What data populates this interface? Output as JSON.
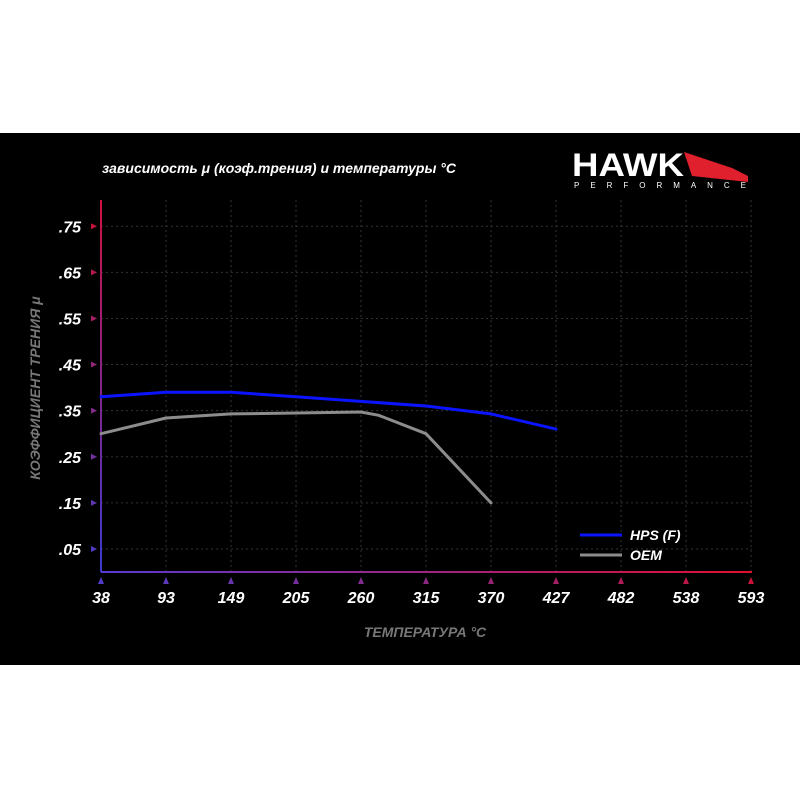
{
  "chart_data": {
    "type": "line",
    "title": "зависимость μ (коэф.трения) и температуры °C",
    "xlabel": "ТЕМПЕРАТУРА °C",
    "ylabel": "КОЭФФИЦИЕНТ ТРЕНИЯ μ",
    "x_ticks": [
      "38",
      "93",
      "149",
      "205",
      "260",
      "315",
      "370",
      "427",
      "482",
      "538",
      "593"
    ],
    "y_ticks": [
      ".05",
      ".15",
      ".25",
      ".35",
      ".45",
      ".55",
      ".65",
      ".75"
    ],
    "xlim": [
      38,
      593
    ],
    "ylim": [
      0,
      0.8
    ],
    "grid": true,
    "legend_position": "bottom-right",
    "series": [
      {
        "name": "HPS (F)",
        "color": "#0a14ff",
        "points": [
          [
            38,
            0.38
          ],
          [
            93,
            0.39
          ],
          [
            149,
            0.39
          ],
          [
            205,
            0.38
          ],
          [
            260,
            0.37
          ],
          [
            315,
            0.36
          ],
          [
            370,
            0.343
          ],
          [
            427,
            0.31
          ]
        ]
      },
      {
        "name": "OEM",
        "color": "#8c8c8c",
        "points": [
          [
            38,
            0.3
          ],
          [
            93,
            0.334
          ],
          [
            149,
            0.343
          ],
          [
            205,
            0.345
          ],
          [
            260,
            0.347
          ],
          [
            275,
            0.34
          ],
          [
            315,
            0.3
          ],
          [
            370,
            0.15
          ]
        ]
      }
    ]
  },
  "logo": {
    "brand": "HAWK",
    "sub": "PERFORMANCE"
  }
}
